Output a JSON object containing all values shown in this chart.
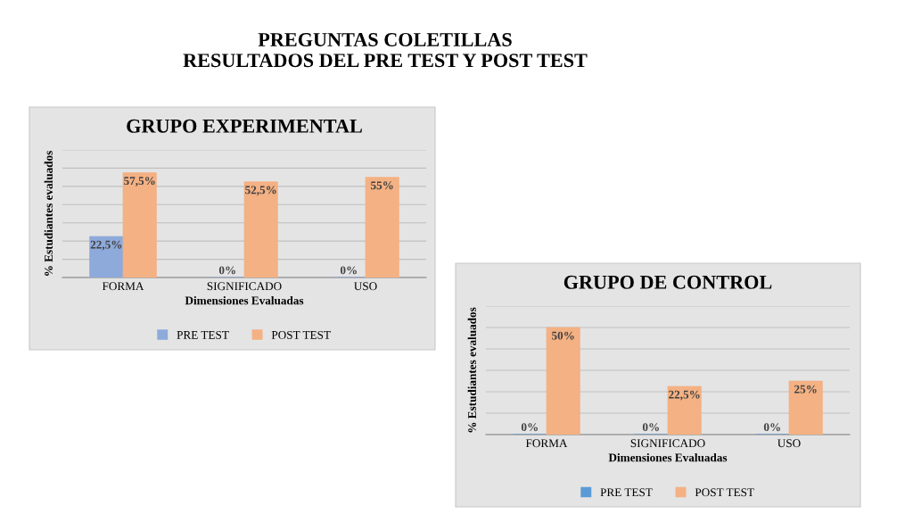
{
  "chart_data": [
    {
      "type": "bar",
      "title": "GRUPO EXPERIMENTAL",
      "xlabel": "Dimensiones Evaluadas",
      "ylabel": "% Estudiantes evaluados",
      "annotations": [
        "PREGUNTAS COLETILLAS\nRESULTADOS DEL PRE TEST Y POST TEST"
      ],
      "categories": [
        "FORMA",
        "SIGNIFICADO",
        "USO"
      ],
      "series": [
        {
          "name": "PRE TEST",
          "color": "#8eaadb",
          "values": [
            22.5,
            0,
            0
          ],
          "value_labels": [
            "22,5%",
            "0%",
            "0%"
          ]
        },
        {
          "name": "POST TEST",
          "color": "#f4b183",
          "values": [
            57.5,
            52.5,
            55
          ],
          "value_labels": [
            "57,5%",
            "52,5%",
            "55%"
          ]
        }
      ],
      "ylim": [
        0,
        70
      ],
      "yticks": [
        {
          "value": 0,
          "label": null
        },
        {
          "value": 10,
          "label": null
        },
        {
          "value": 20,
          "label": null
        },
        {
          "value": 30,
          "label": null
        },
        {
          "value": 40,
          "label": null
        },
        {
          "value": 50,
          "label": null
        },
        {
          "value": 60,
          "label": null
        },
        {
          "value": 70,
          "label": null
        }
      ],
      "tick_labels": "x",
      "grid": "y",
      "legend": "bottom"
    },
    {
      "type": "bar",
      "title": "GRUPO DE CONTROL",
      "xlabel": "Dimensiones Evaluadas",
      "ylabel": "% Estudiantes evaluados",
      "categories": [
        "FORMA",
        "SIGNIFICADO",
        "USO"
      ],
      "series": [
        {
          "name": "PRE TEST",
          "color": "#5b9bd5",
          "values": [
            0,
            0,
            0
          ],
          "value_labels": [
            "0%",
            "0%",
            "0%"
          ]
        },
        {
          "name": "POST TEST",
          "color": "#f4b183",
          "values": [
            50,
            22.5,
            25
          ],
          "value_labels": [
            "50%",
            "22,5%",
            "25%"
          ]
        }
      ],
      "ylim": [
        0,
        60
      ],
      "yticks": [
        {
          "value": 0,
          "label": null
        },
        {
          "value": 10,
          "label": null
        },
        {
          "value": 20,
          "label": null
        },
        {
          "value": 30,
          "label": null
        },
        {
          "value": 40,
          "label": null
        },
        {
          "value": 50,
          "label": null
        },
        {
          "value": 60,
          "label": null
        }
      ],
      "tick_labels": "x",
      "grid": "y",
      "legend": "bottom"
    }
  ]
}
